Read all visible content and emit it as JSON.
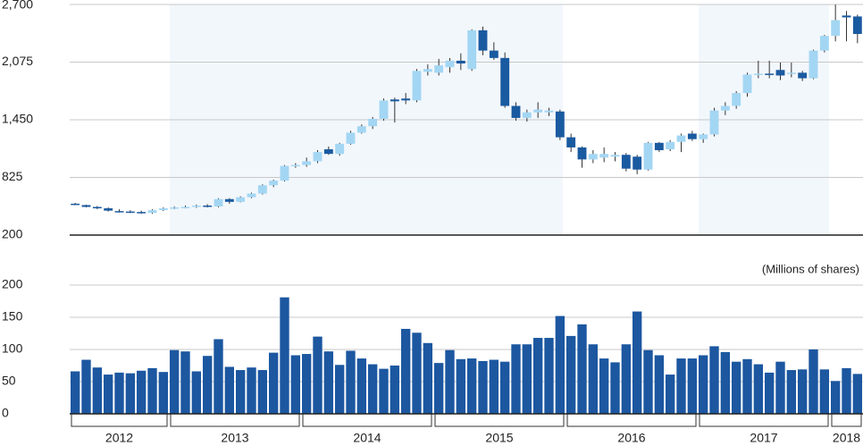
{
  "chart_data": [
    {
      "type": "candlestick",
      "series": [
        {
          "name": null,
          "up_color": "#a3d6f3",
          "down_color": "#1a5aa0",
          "open": [
            540,
            525,
            505,
            490,
            460,
            455,
            450,
            440,
            470,
            490,
            500,
            505,
            520,
            510,
            590,
            560,
            610,
            650,
            740,
            790,
            950,
            960,
            1000,
            1130,
            1080,
            1190,
            1310,
            1380,
            1460,
            1670,
            1680,
            1660,
            1970,
            1960,
            2020,
            2090,
            2000,
            2420,
            2200,
            2120,
            1600,
            1470,
            1530,
            1530,
            1540,
            1260,
            1150,
            1020,
            1040,
            1050,
            1070,
            1050,
            910,
            1200,
            1130,
            1210,
            1300,
            1240,
            1290,
            1550,
            1600,
            1740,
            1940,
            1950,
            1990,
            1950,
            1960,
            1900,
            2200,
            2360,
            2580,
            2570
          ],
          "high": [
            550,
            530,
            515,
            500,
            480,
            470,
            465,
            480,
            500,
            510,
            520,
            530,
            535,
            600,
            600,
            620,
            660,
            750,
            800,
            960,
            980,
            1040,
            1120,
            1160,
            1200,
            1330,
            1400,
            1480,
            1680,
            1690,
            1740,
            2000,
            2050,
            2110,
            2120,
            2170,
            2430,
            2460,
            2290,
            2180,
            1640,
            1560,
            1640,
            1580,
            1560,
            1300,
            1160,
            1120,
            1150,
            1100,
            1090,
            1070,
            1210,
            1210,
            1230,
            1300,
            1330,
            1300,
            1580,
            1640,
            1760,
            1960,
            2090,
            2090,
            2070,
            2070,
            1980,
            2210,
            2370,
            2700,
            2630,
            2590
          ],
          "low": [
            525,
            500,
            480,
            455,
            445,
            440,
            430,
            430,
            460,
            480,
            490,
            495,
            500,
            500,
            540,
            555,
            600,
            640,
            720,
            780,
            930,
            940,
            980,
            1070,
            1060,
            1180,
            1300,
            1350,
            1440,
            1420,
            1620,
            1640,
            1930,
            1930,
            1960,
            1990,
            1980,
            2150,
            2100,
            1580,
            1440,
            1430,
            1470,
            1490,
            1230,
            1100,
            930,
            980,
            990,
            1000,
            890,
            860,
            900,
            1100,
            1110,
            1100,
            1220,
            1200,
            1270,
            1500,
            1570,
            1700,
            1900,
            1900,
            1880,
            1910,
            1870,
            1890,
            2180,
            2300,
            2300,
            2280
          ],
          "close": [
            530,
            505,
            490,
            465,
            455,
            450,
            440,
            470,
            490,
            500,
            505,
            520,
            510,
            590,
            560,
            610,
            650,
            740,
            790,
            950,
            960,
            1000,
            1100,
            1080,
            1190,
            1310,
            1380,
            1460,
            1660,
            1650,
            1660,
            1980,
            2000,
            2040,
            2090,
            2060,
            2420,
            2200,
            2120,
            1600,
            1470,
            1530,
            1560,
            1550,
            1260,
            1150,
            1020,
            1080,
            1080,
            1070,
            920,
            910,
            1200,
            1120,
            1210,
            1280,
            1240,
            1290,
            1550,
            1600,
            1740,
            1940,
            1950,
            1940,
            1930,
            1960,
            1900,
            2200,
            2360,
            2530,
            2560,
            2380
          ]
        }
      ],
      "ylim": [
        200,
        2700
      ],
      "yticks": [
        200,
        {
          "value": 825,
          "label": "825"
        },
        {
          "value": 1450,
          "label": "1,450"
        },
        {
          "value": 2075,
          "label": "2,075"
        },
        {
          "value": 2700,
          "label": "2,700"
        }
      ],
      "grid": true
    },
    {
      "type": "bar",
      "y_label": "(Millions of shares)",
      "categories": [
        "2012",
        "2012",
        "2012",
        "2012",
        "2012",
        "2012",
        "2012",
        "2012",
        "2012",
        "2013",
        "2013",
        "2013",
        "2013",
        "2013",
        "2013",
        "2013",
        "2013",
        "2013",
        "2013",
        "2013",
        "2013",
        "2014",
        "2014",
        "2014",
        "2014",
        "2014",
        "2014",
        "2014",
        "2014",
        "2014",
        "2014",
        "2014",
        "2014",
        "2015",
        "2015",
        "2015",
        "2015",
        "2015",
        "2015",
        "2015",
        "2015",
        "2015",
        "2015",
        "2015",
        "2015",
        "2016",
        "2016",
        "2016",
        "2016",
        "2016",
        "2016",
        "2016",
        "2016",
        "2016",
        "2016",
        "2016",
        "2016",
        "2017",
        "2017",
        "2017",
        "2017",
        "2017",
        "2017",
        "2017",
        "2017",
        "2017",
        "2017",
        "2017",
        "2017",
        "2018",
        "2018",
        "2018"
      ],
      "values": [
        66,
        84,
        72,
        61,
        64,
        63,
        67,
        71,
        65,
        99,
        97,
        66,
        90,
        116,
        73,
        68,
        72,
        68,
        95,
        181,
        91,
        93,
        120,
        97,
        76,
        98,
        86,
        77,
        70,
        75,
        132,
        126,
        110,
        79,
        99,
        85,
        86,
        82,
        84,
        81,
        108,
        108,
        118,
        118,
        152,
        121,
        139,
        108,
        86,
        80,
        108,
        159,
        99,
        91,
        61,
        86,
        86,
        91,
        105,
        96,
        81,
        85,
        77,
        64,
        81,
        68,
        69,
        100,
        69,
        51,
        71,
        62
      ],
      "color": "#1c57a0",
      "ylim": [
        0,
        200
      ],
      "yticks": [
        0,
        50,
        100,
        150,
        200
      ],
      "grid": true
    }
  ]
}
